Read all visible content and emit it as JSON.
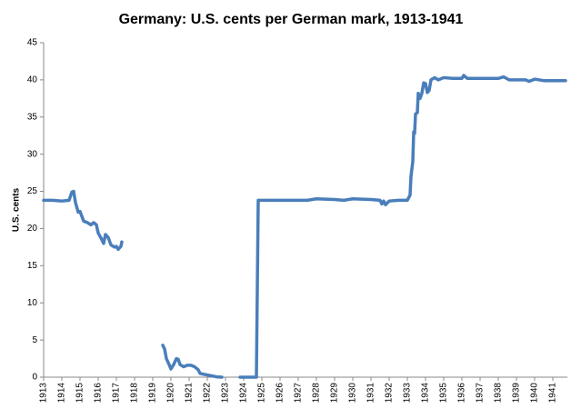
{
  "chart_data": {
    "type": "line",
    "title": "Germany: U.S. cents per German mark, 1913-1941",
    "y_label": "U.S. cents",
    "x": [
      1913.0,
      1913.5,
      1914.0,
      1914.4,
      1914.55,
      1914.65,
      1914.75,
      1914.9,
      1915.0,
      1915.2,
      1915.4,
      1915.6,
      1915.75,
      1915.9,
      1916.0,
      1916.2,
      1916.3,
      1916.4,
      1916.55,
      1916.7,
      1916.9,
      1917.0,
      1917.1,
      1917.25,
      1917.3,
      1918.5,
      1919.55,
      1919.65,
      1919.75,
      1919.9,
      1920.0,
      1920.15,
      1920.3,
      1920.4,
      1920.5,
      1920.7,
      1920.9,
      1921.1,
      1921.3,
      1921.5,
      1921.6,
      1921.8,
      1922.0,
      1922.2,
      1922.5,
      1922.8,
      1923.3,
      1923.8,
      1924.2,
      1924.7,
      1924.8,
      1925.5,
      1926.5,
      1927.0,
      1927.5,
      1928.0,
      1929.0,
      1929.5,
      1930.0,
      1931.0,
      1931.5,
      1931.6,
      1931.7,
      1931.8,
      1932.0,
      1932.5,
      1933.0,
      1933.15,
      1933.2,
      1933.3,
      1933.35,
      1933.4,
      1933.45,
      1933.55,
      1933.6,
      1933.7,
      1933.8,
      1933.9,
      1934.0,
      1934.1,
      1934.2,
      1934.3,
      1934.5,
      1934.7,
      1935.0,
      1935.5,
      1936.0,
      1936.1,
      1936.3,
      1937.0,
      1938.0,
      1938.3,
      1938.6,
      1939.0,
      1939.5,
      1939.7,
      1940.0,
      1940.5,
      1941.0,
      1941.7
    ],
    "series": [
      {
        "name": "U.S. cents per German mark",
        "color": "#4a7ebb",
        "values": [
          23.8,
          23.8,
          23.7,
          23.8,
          24.9,
          25.0,
          23.5,
          22.2,
          22.3,
          21.0,
          20.8,
          20.5,
          20.8,
          20.5,
          19.4,
          18.5,
          18.0,
          19.2,
          18.8,
          17.8,
          17.5,
          17.6,
          17.2,
          17.6,
          18.2,
          null,
          4.3,
          3.8,
          2.5,
          1.7,
          1.1,
          1.7,
          2.5,
          2.4,
          1.7,
          1.4,
          1.6,
          1.6,
          1.4,
          1.0,
          0.5,
          0.4,
          0.3,
          0.2,
          0.05,
          0.0,
          null,
          0.0,
          0.0,
          0.0,
          23.8,
          23.8,
          23.8,
          23.8,
          23.8,
          24.0,
          23.9,
          23.8,
          24.0,
          23.9,
          23.8,
          23.3,
          23.7,
          23.2,
          23.7,
          23.8,
          23.8,
          24.5,
          27.0,
          29.0,
          33.0,
          32.8,
          35.4,
          35.6,
          38.2,
          37.5,
          38.2,
          39.6,
          39.5,
          38.3,
          38.6,
          40.0,
          40.3,
          40.0,
          40.3,
          40.2,
          40.2,
          40.6,
          40.2,
          40.2,
          40.2,
          40.4,
          40.0,
          40.0,
          40.0,
          39.8,
          40.1,
          39.9,
          39.9,
          39.9
        ]
      }
    ],
    "xlim": [
      1913,
      1941.8
    ],
    "xticks": [
      1913,
      1914,
      1915,
      1916,
      1917,
      1918,
      1919,
      1920,
      1921,
      1922,
      1923,
      1924,
      1925,
      1926,
      1927,
      1928,
      1929,
      1930,
      1931,
      1932,
      1933,
      1934,
      1935,
      1936,
      1937,
      1938,
      1939,
      1940,
      1941
    ],
    "ylim": [
      0,
      45
    ],
    "yticks": [
      0,
      5,
      10,
      15,
      20,
      25,
      30,
      35,
      40,
      45
    ],
    "grid": false
  }
}
